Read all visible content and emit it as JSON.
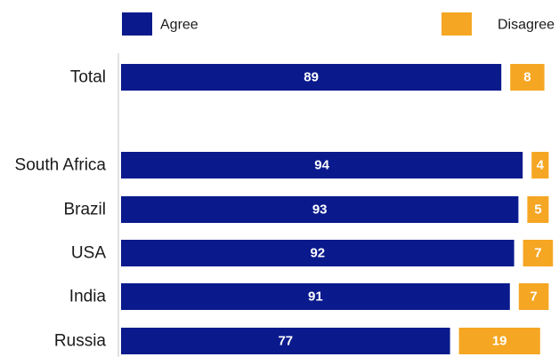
{
  "chart_data": {
    "type": "bar",
    "orientation": "horizontal",
    "stacked": true,
    "categories": [
      "Total",
      "South Africa",
      "Brazil",
      "USA",
      "India",
      "Russia"
    ],
    "series": [
      {
        "name": "Agree",
        "values": [
          89,
          94,
          93,
          92,
          91,
          77
        ],
        "color": "#0a1a8c"
      },
      {
        "name": "Disagree",
        "values": [
          8,
          4,
          5,
          7,
          7,
          19
        ],
        "color": "#f5a623"
      }
    ],
    "xlim": [
      0,
      100
    ],
    "legend": "top",
    "grid": false
  }
}
